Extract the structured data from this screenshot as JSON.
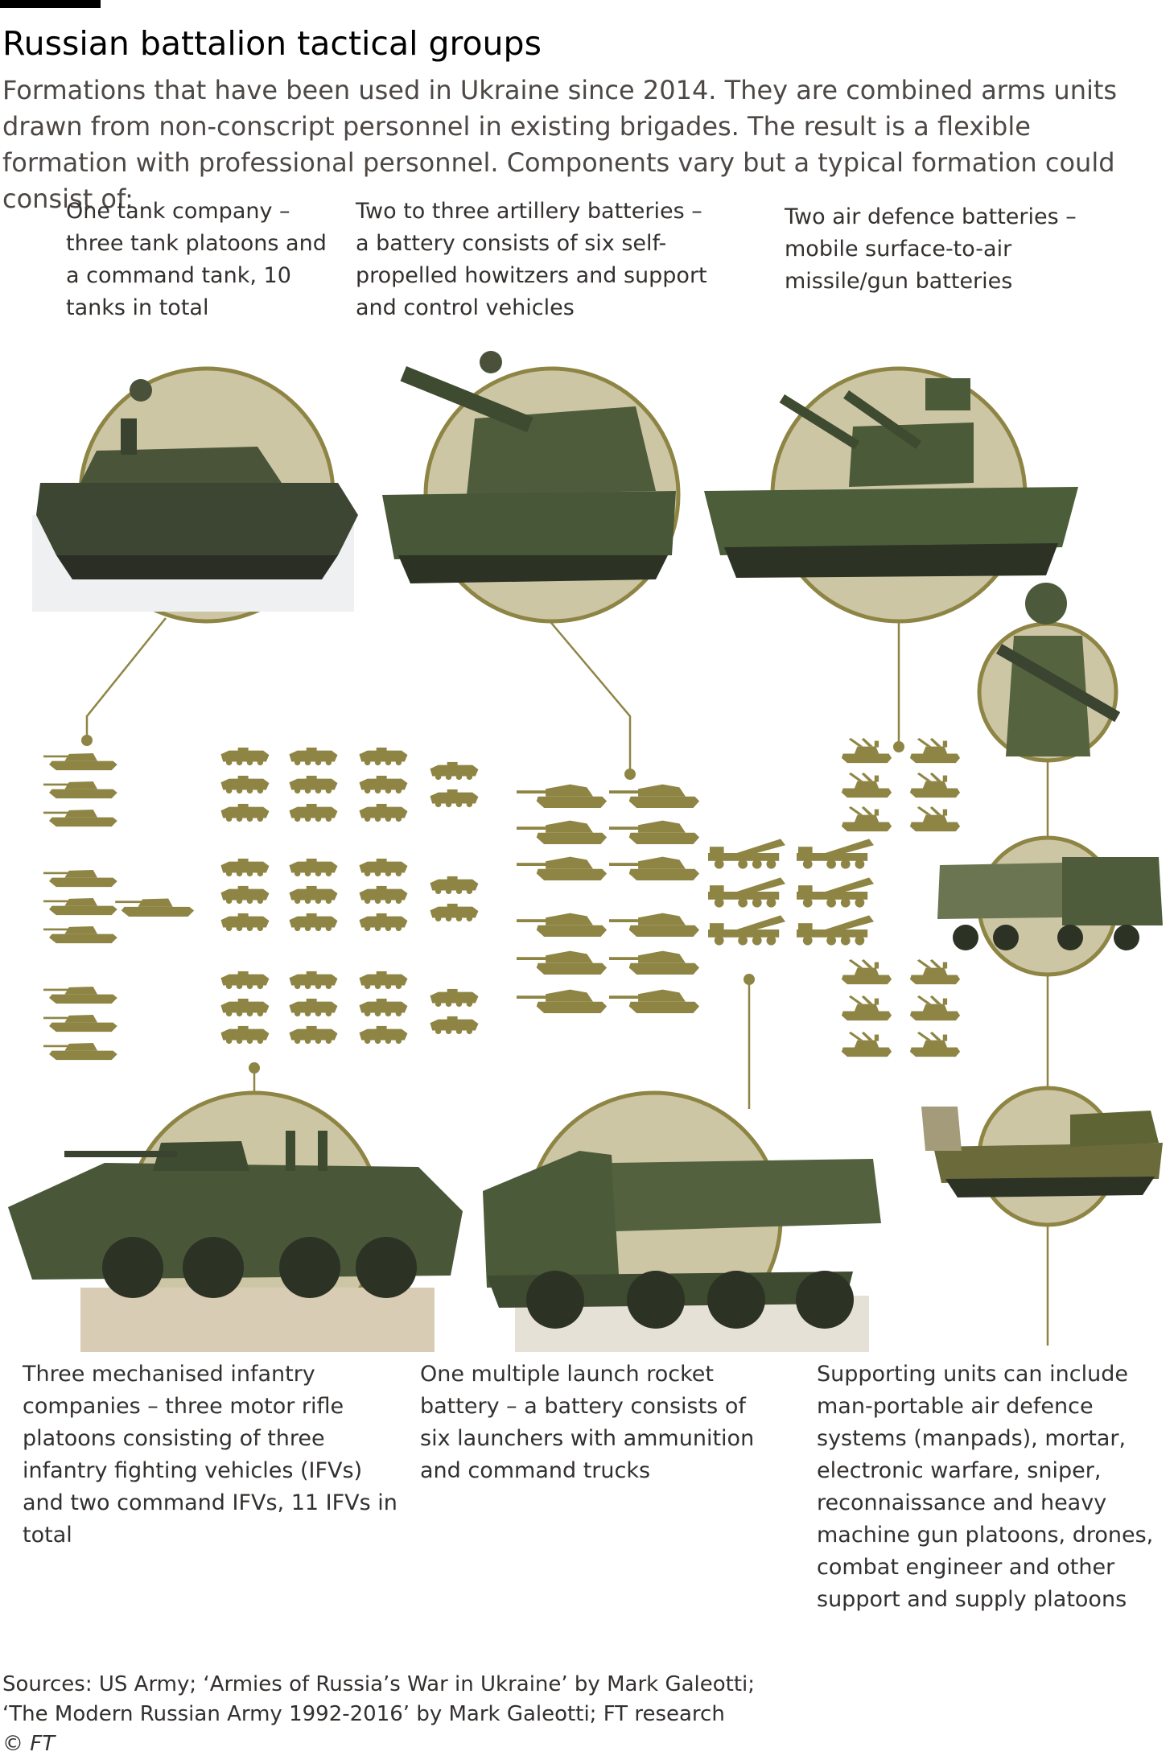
{
  "title": "Russian battalion tactical groups",
  "subtitle": "Formations that have been used in Ukraine since 2014. They are combined arms units drawn from non-conscript personnel in existing brigades. The result is a flexible formation with professional personnel. Components vary but a typical formation could consist of:",
  "labels": {
    "tank": "One tank company – three tank platoons and a command tank, 10 tanks in total",
    "artillery": "Two to three artillery batteries – a battery consists of six self-propelled howitzers and support and control vehicles",
    "air_defence": "Two air defence batteries – mobile surface-to-air missile/gun batteries",
    "infantry": "Three mechanised infantry companies – three motor rifle platoons consisting of three infantry fighting vehicles (IFVs) and two command IFVs, 11 IFVs in total",
    "rocket": "One multiple launch rocket battery – a battery consists of six launchers with ammunition and command trucks",
    "support": "Supporting units can include man-portable air defence systems (manpads), mortar, electronic warfare, sniper, reconnaissance and heavy machine gun platoons, drones, combat engineer and other support and supply platoons"
  },
  "counts": {
    "tanks": 10,
    "ifvs": 33,
    "howitzers": 12,
    "rocket_launchers": 6,
    "air_defence_vehicles": 12
  },
  "colors": {
    "accent": "#8e8545",
    "circle_fill": "#ccc6a4",
    "text": "#33302e"
  },
  "source_line1": "Sources: US Army; ‘Armies of Russia’s War in Ukraine’ by Mark Galeotti;",
  "source_line2": "‘The Modern Russian Army 1992-2016’ by Mark Galeotti; FT research",
  "copyright": "© FT"
}
